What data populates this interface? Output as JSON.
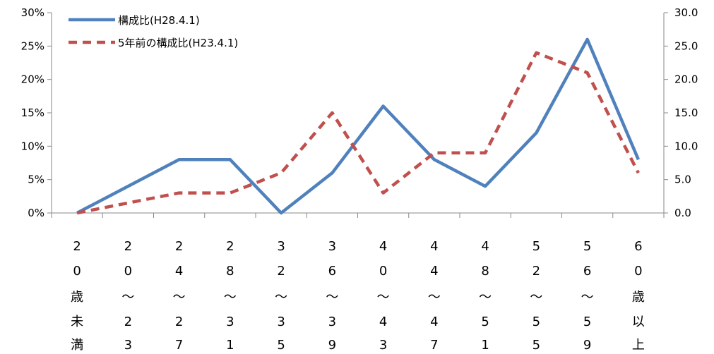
{
  "chart_data": {
    "type": "line",
    "categories": [
      [
        "2",
        "0",
        "歳",
        "未",
        "満"
      ],
      [
        "2",
        "0",
        "〜",
        "2",
        "3"
      ],
      [
        "2",
        "4",
        "〜",
        "2",
        "7"
      ],
      [
        "2",
        "8",
        "〜",
        "3",
        "1"
      ],
      [
        "3",
        "2",
        "〜",
        "3",
        "5"
      ],
      [
        "3",
        "6",
        "〜",
        "3",
        "9"
      ],
      [
        "4",
        "0",
        "〜",
        "4",
        "3"
      ],
      [
        "4",
        "4",
        "〜",
        "4",
        "7"
      ],
      [
        "4",
        "8",
        "〜",
        "5",
        "1"
      ],
      [
        "5",
        "2",
        "〜",
        "5",
        "5"
      ],
      [
        "5",
        "6",
        "〜",
        "5",
        "9"
      ],
      [
        "6",
        "0",
        "歳",
        "以",
        "上"
      ]
    ],
    "series": [
      {
        "name": "構成比(H28.4.1)",
        "axis": "left",
        "color": "#4f81bd",
        "style": "solid",
        "values": [
          0,
          4,
          8,
          8,
          0,
          6,
          16,
          8,
          4,
          12,
          26,
          8
        ]
      },
      {
        "name": "5年前の構成比(H23.4.1)",
        "axis": "right",
        "color": "#c0504d",
        "style": "dashed",
        "values": [
          0,
          1.5,
          3,
          3,
          6,
          15,
          3,
          9,
          9,
          24,
          21,
          6
        ]
      }
    ],
    "y_left": {
      "min": 0,
      "max": 30,
      "step": 5,
      "ticks": [
        "0%",
        "5%",
        "10%",
        "15%",
        "20%",
        "25%",
        "30%"
      ]
    },
    "y_right": {
      "min": 0,
      "max": 30,
      "step": 5,
      "ticks": [
        "0.0",
        "5.0",
        "10.0",
        "15.0",
        "20.0",
        "25.0",
        "30.0"
      ]
    },
    "legend_position": "top-left",
    "grid": false
  }
}
